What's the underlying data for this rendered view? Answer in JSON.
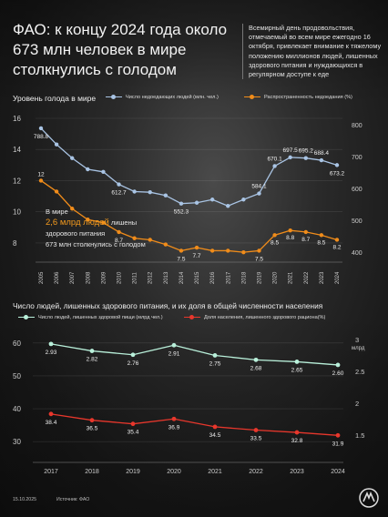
{
  "header": {
    "title": "ФАО: к концу 2024 года около 673 млн человек в мире столкнулись с голодом",
    "intro": "Всемирный день продовольствия, отмечаемый во всем мире ежегодно 16 октября, привлекает внимание к тяжелому положению миллионов людей, лишенных здорового питания и нуждающихся в регулярном доступе к еде"
  },
  "note": {
    "line1": "В мире",
    "highlight": "2,6 млрд людей",
    "line2_rest": " лишены",
    "line3": "здорового питания",
    "line4": "673 млн столкнулись с голодом"
  },
  "footer": {
    "date": "15.10.2025",
    "source": "Источник: ФАО"
  },
  "colors": {
    "blue": "#a9c4e4",
    "orange": "#f08c1a",
    "mint": "#b9f0da",
    "red": "#e8372c",
    "background": "#1b1b1b"
  },
  "chart_data": [
    {
      "type": "line",
      "title": "Уровень голода в мире",
      "x": [
        2005,
        2006,
        2007,
        2008,
        2009,
        2010,
        2011,
        2012,
        2013,
        2014,
        2015,
        2016,
        2017,
        2018,
        2019,
        2020,
        2021,
        2022,
        2023,
        2024
      ],
      "series": [
        {
          "name": "Число недоедающих людей (млн. чел.)",
          "axis": "right",
          "values": [
            788.8,
            738,
            695,
            660,
            652,
            612.7,
            590,
            588,
            578,
            552.3,
            555,
            565,
            545,
            565,
            584.1,
            670.1,
            697.5,
            695.2,
            688.4,
            673.2
          ],
          "labels": [
            "788.8",
            "",
            "",
            "",
            "",
            "612.7",
            "",
            "",
            "",
            "552.3",
            "",
            "",
            "",
            "",
            "584.1",
            "670.1",
            "697.5",
            "695.2",
            "688.4",
            "673.2"
          ]
        },
        {
          "name": "Распространенность недоедания (%)",
          "axis": "left",
          "values": [
            12,
            11.3,
            10.2,
            9.5,
            9.3,
            8.7,
            8.3,
            8.2,
            7.9,
            7.5,
            7.7,
            7.5,
            7.5,
            7.4,
            7.5,
            8.5,
            8.8,
            8.7,
            8.5,
            8.2
          ],
          "labels": [
            "12",
            "",
            "",
            "",
            "",
            "8.7",
            "",
            "",
            "",
            "7.5",
            "7.7",
            "",
            "",
            "",
            "7.5",
            "8.5",
            "8.8",
            "8.7",
            "8.5",
            "8.2"
          ]
        }
      ],
      "yticks_left": [
        "16",
        "14",
        "12",
        "10",
        "8"
      ],
      "ylim_left": [
        7,
        16
      ],
      "yticks_right": [
        "800",
        "700",
        "600",
        "500",
        "400"
      ],
      "ylim_right": [
        380,
        820
      ],
      "grid": true,
      "legend_position": "top"
    },
    {
      "type": "line",
      "title": "Число людей, лишенных здорового питания, и их доля в общей численности населения",
      "x": [
        2017,
        2018,
        2019,
        2020,
        2021,
        2022,
        2023,
        2024
      ],
      "series": [
        {
          "name": "Число людей, лишенных здоровой пищи (млрд чел.)",
          "axis": "right",
          "values": [
            2.93,
            2.82,
            2.76,
            2.91,
            2.75,
            2.68,
            2.65,
            2.6
          ],
          "labels": [
            "2.93",
            "2.82",
            "2.76",
            "2.91",
            "2.75",
            "2.68",
            "2.65",
            "2.60"
          ]
        },
        {
          "name": "Доля населения, лишенного здорового рациона(%)",
          "axis": "left",
          "values": [
            38.4,
            36.5,
            35.4,
            36.9,
            34.5,
            33.5,
            32.8,
            31.9
          ],
          "labels": [
            "38.4",
            "36.5",
            "35.4",
            "36.9",
            "34.5",
            "33.5",
            "32.8",
            "31.9"
          ]
        }
      ],
      "yticks_left": [
        "60",
        "50",
        "40",
        "30"
      ],
      "ylim_left": [
        27,
        63
      ],
      "yticks_right": [
        "3",
        "2.5",
        "2",
        "1.5"
      ],
      "ylim_right": [
        1.24,
        3.1
      ],
      "right_unit": "млрд",
      "grid": true,
      "legend_position": "top"
    }
  ]
}
